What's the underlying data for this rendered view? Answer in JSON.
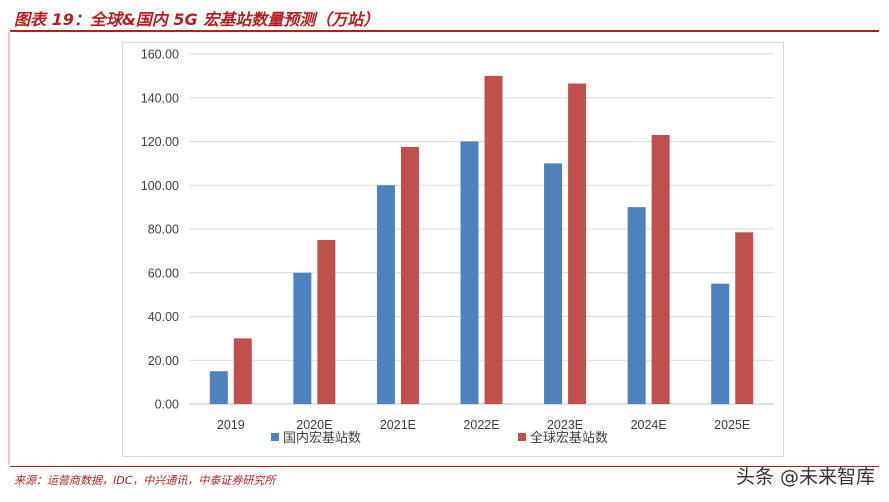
{
  "figure": {
    "title": "图表 19：全球&国内 5G 宏基站数量预测（万站）",
    "source": "来源：运营商数据，IDC，中兴通讯，中泰证券研究所",
    "watermark": "头条 @未来智库"
  },
  "chart_data": {
    "type": "bar",
    "categories": [
      "2019",
      "2020E",
      "2021E",
      "2022E",
      "2023E",
      "2024E",
      "2025E"
    ],
    "series": [
      {
        "name": "国内宏基站数",
        "color": "#4f81bd",
        "values": [
          15,
          60,
          100,
          120,
          110,
          90,
          55
        ]
      },
      {
        "name": "全球宏基站数",
        "color": "#c0504d",
        "values": [
          30,
          75,
          117.5,
          150,
          146.5,
          123,
          78.5
        ]
      }
    ],
    "ylim": [
      0,
      160
    ],
    "yticks": [
      "0.00",
      "20.00",
      "40.00",
      "60.00",
      "80.00",
      "100.00",
      "120.00",
      "140.00",
      "160.00"
    ],
    "grid": true,
    "legend_position": "bottom"
  }
}
